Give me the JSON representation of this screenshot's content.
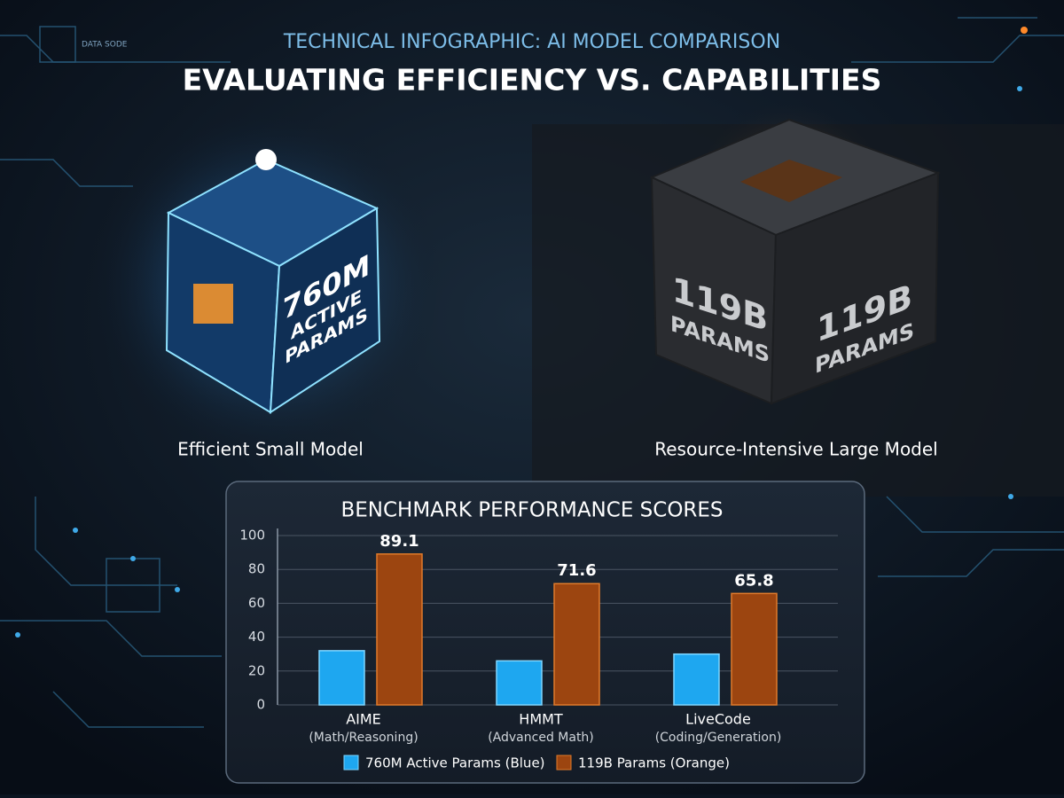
{
  "header": {
    "kicker": "TECHNICAL INFOGRAPHIC: AI MODEL COMPARISON",
    "title": "EVALUATING EFFICIENCY VS. CAPABILITIES",
    "corner_label": "DATA SODE"
  },
  "panels": [
    {
      "caption": "Efficient Small Model",
      "cube_label": [
        "760M",
        "ACTIVE",
        "PARAMS"
      ]
    },
    {
      "caption": "Resource-Intensive Large Model",
      "cube_label": [
        "119B",
        "PARAMS"
      ]
    }
  ],
  "chart_data": {
    "type": "bar",
    "title": "BENCHMARK PERFORMANCE SCORES",
    "categories": [
      "AIME",
      "HMMT",
      "LiveCode"
    ],
    "category_notes": [
      "(Math/Reasoning)",
      "(Advanced Math)",
      "(Coding/Generation)"
    ],
    "series": [
      {
        "name": "760M Active Params (Blue)",
        "color": "#1ea7f0",
        "values": [
          32,
          26,
          30
        ],
        "labels": false
      },
      {
        "name": "119B Params (Orange)",
        "color": "#9c4510",
        "values": [
          89.1,
          71.6,
          65.8
        ],
        "labels": true
      }
    ],
    "ylim": [
      0,
      100
    ],
    "yticks": [
      0,
      20,
      40,
      60,
      80,
      100
    ],
    "grid": true,
    "legend": "bottom"
  }
}
